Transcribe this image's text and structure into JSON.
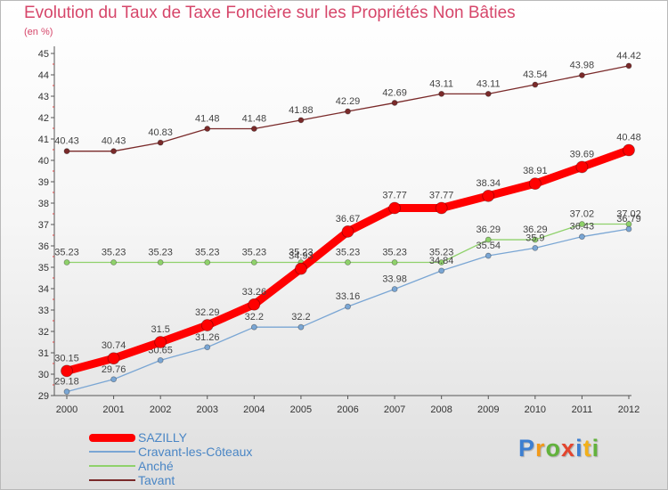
{
  "title": "Evolution du Taux de Taxe Foncière sur les Propriétés Non Bâties",
  "subtitle": "(en %)",
  "logo": {
    "letters": [
      "P",
      "r",
      "o",
      "x",
      "i",
      "t",
      "i"
    ],
    "colors": [
      "#3d7fd1",
      "#f29a1a",
      "#62b23c",
      "#e3452e",
      "#3d7fd1",
      "#f2b01a",
      "#62b23c"
    ]
  },
  "chart_data": {
    "type": "line",
    "x": [
      "2000",
      "2001",
      "2002",
      "2003",
      "2004",
      "2005",
      "2006",
      "2007",
      "2008",
      "2009",
      "2010",
      "2011",
      "2012"
    ],
    "ylim": [
      29,
      45
    ],
    "yticks": [
      "29",
      "30",
      "31",
      "32",
      "33",
      "34",
      "35",
      "36",
      "37",
      "38",
      "39",
      "40",
      "41",
      "42",
      "43",
      "44",
      "45"
    ],
    "grid": false,
    "legend_position": "bottom-left",
    "series": [
      {
        "name": "Tavant",
        "color": "#7a2a2a",
        "values": [
          40.43,
          40.43,
          40.83,
          41.48,
          41.48,
          41.88,
          42.29,
          42.69,
          43.11,
          43.11,
          43.54,
          43.98,
          44.42
        ],
        "labels": [
          "40.43",
          "40.43",
          "40.83",
          "41.48",
          "41.48",
          "41.88",
          "42.29",
          "42.69",
          "43.11",
          "43.11",
          "43.54",
          "43.98",
          "44.42"
        ]
      },
      {
        "name": "Anché",
        "color": "#8fd16b",
        "values": [
          35.23,
          35.23,
          35.23,
          35.23,
          35.23,
          35.23,
          35.23,
          35.23,
          35.23,
          36.29,
          36.29,
          37.02,
          37.02
        ],
        "labels": [
          "35.23",
          "35.23",
          "35.23",
          "35.23",
          "35.23",
          "35.23",
          "35.23",
          "35.23",
          "35.23",
          "36.29",
          "36.29",
          "37.02",
          "37.02"
        ]
      },
      {
        "name": "Cravant-les-Côteaux",
        "color": "#7aa6d4",
        "values": [
          29.18,
          29.76,
          30.65,
          31.26,
          32.2,
          32.2,
          33.16,
          33.98,
          34.84,
          35.54,
          35.9,
          36.43,
          36.79
        ],
        "labels": [
          "29.18",
          "29.76",
          "30.65",
          "31.26",
          "32.2",
          "32.2",
          "33.16",
          "33.98",
          "34.84",
          "35.54",
          "35.9",
          "36.43",
          "36.79"
        ]
      },
      {
        "name": "SAZILLY",
        "color": "#ff0000",
        "values": [
          30.15,
          30.74,
          31.5,
          32.29,
          33.26,
          34.93,
          36.67,
          37.77,
          37.77,
          38.34,
          38.91,
          39.69,
          40.48
        ],
        "labels": [
          "30.15",
          "30.74",
          "31.5",
          "32.29",
          "33.26",
          "34.93",
          "36.67",
          "37.77",
          "37.77",
          "38.34",
          "38.91",
          "39.69",
          "40.48"
        ]
      }
    ]
  },
  "legend": [
    {
      "label": "SAZILLY",
      "color": "#ff0000",
      "thickness": 9
    },
    {
      "label": "Cravant-les-Côteaux",
      "color": "#7aa6d4",
      "thickness": 2
    },
    {
      "label": "Anché",
      "color": "#8fd16b",
      "thickness": 2
    },
    {
      "label": "Tavant",
      "color": "#7a2a2a",
      "thickness": 2
    }
  ]
}
